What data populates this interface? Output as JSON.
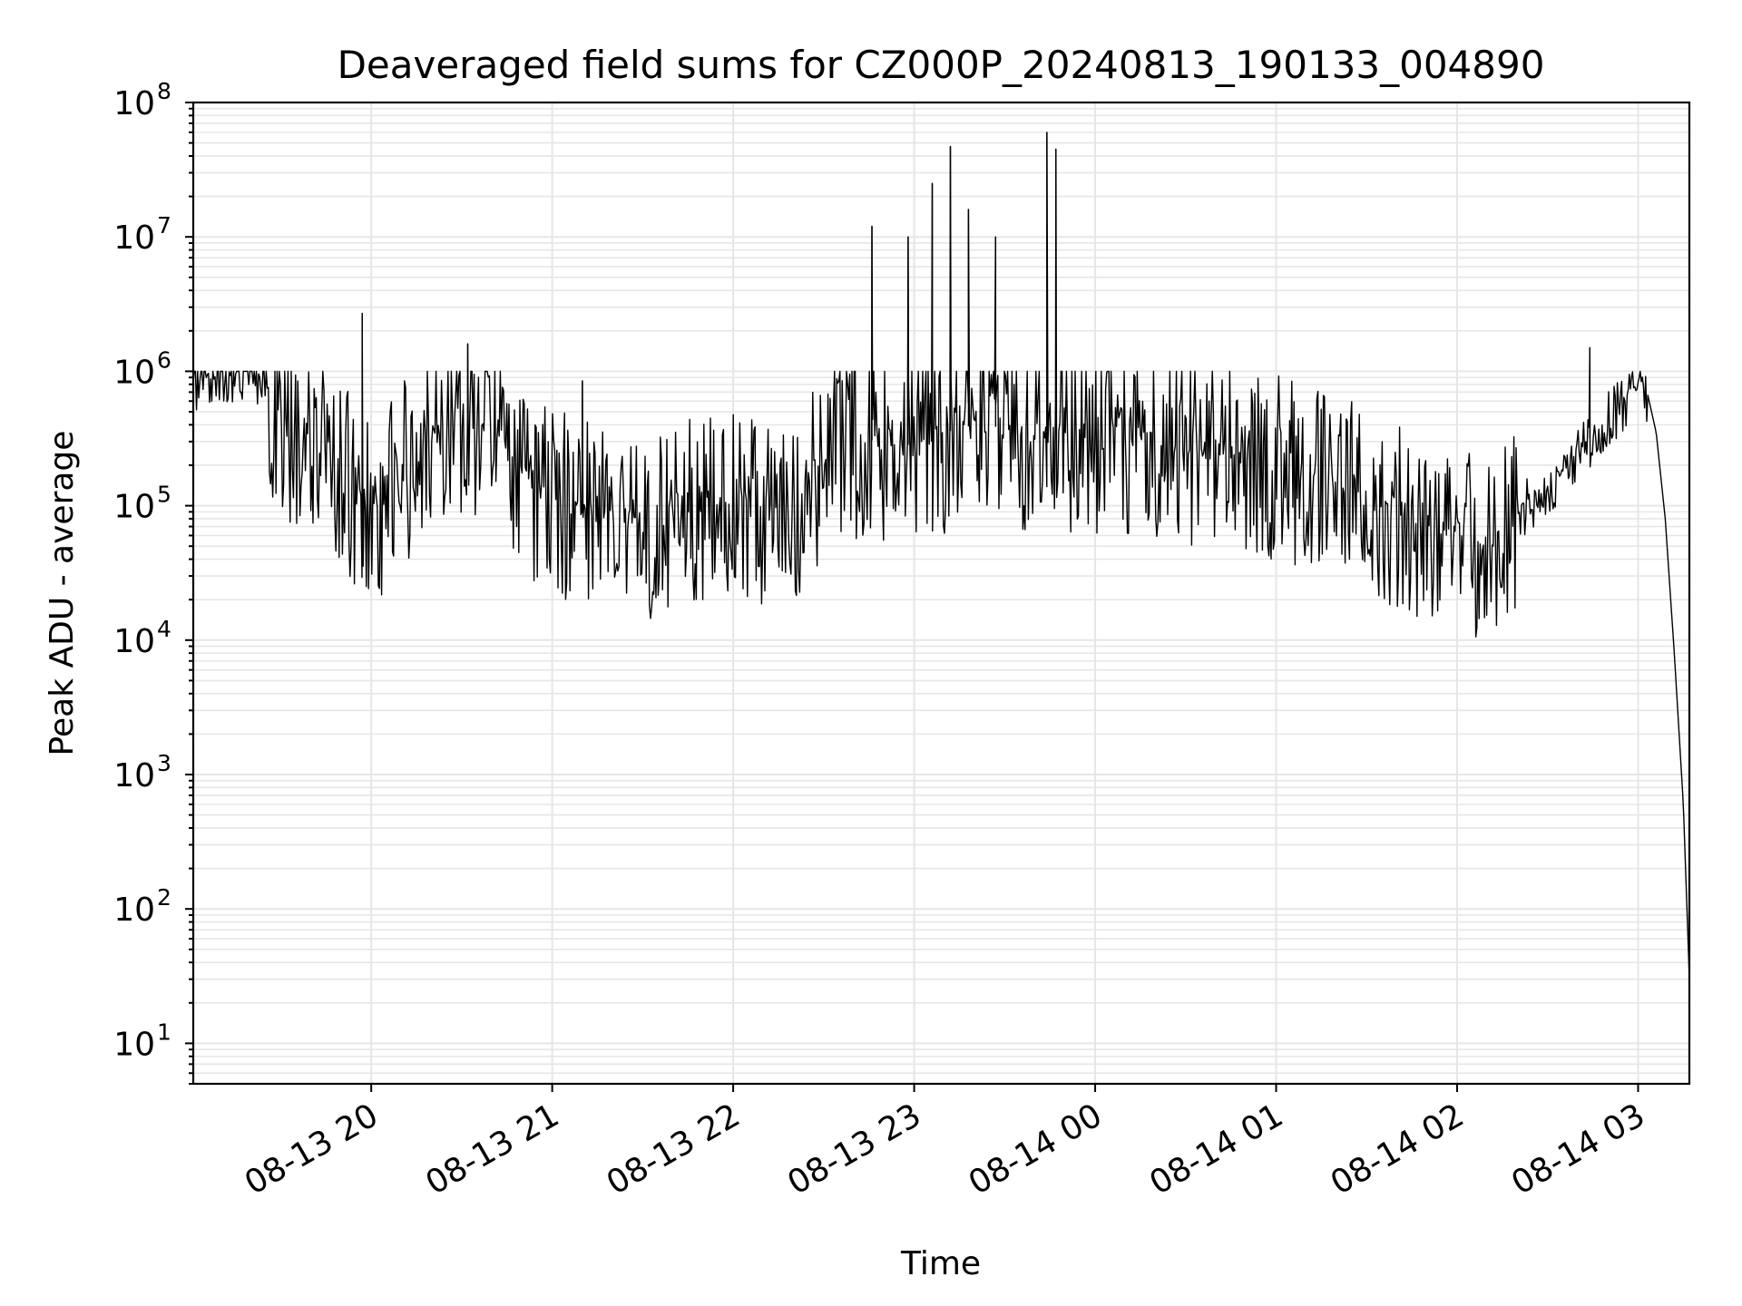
{
  "chart_data": {
    "type": "line",
    "title": "Deaveraged field sums for CZ000P_20240813_190133_004890",
    "xlabel": "Time",
    "ylabel": "Peak ADU - average",
    "yscale": "log",
    "ylim": [
      5,
      100000000
    ],
    "xlim": [
      "2024-08-13 19:01",
      "2024-08-14 03:17"
    ],
    "grid": true,
    "x_ticks": [
      "08-13 20",
      "08-13 21",
      "08-13 22",
      "08-13 23",
      "08-14 00",
      "08-14 01",
      "08-14 02",
      "08-14 03"
    ],
    "y_ticks": [
      {
        "base": "10",
        "exp": "1",
        "value": 10
      },
      {
        "base": "10",
        "exp": "2",
        "value": 100
      },
      {
        "base": "10",
        "exp": "3",
        "value": 1000
      },
      {
        "base": "10",
        "exp": "4",
        "value": 10000
      },
      {
        "base": "10",
        "exp": "5",
        "value": 100000
      },
      {
        "base": "10",
        "exp": "6",
        "value": 1000000
      },
      {
        "base": "10",
        "exp": "7",
        "value": 10000000
      },
      {
        "base": "10",
        "exp": "8",
        "value": 100000000
      }
    ],
    "line_color": "#000000",
    "series": [
      {
        "x": [
          "2024-08-13 19:01",
          "2024-08-13 19:10",
          "2024-08-13 19:20",
          "2024-08-13 19:25",
          "2024-08-13 19:30",
          "2024-08-13 19:40",
          "2024-08-13 19:50",
          "2024-08-13 19:55",
          "2024-08-13 20:00",
          "2024-08-13 20:10",
          "2024-08-13 20:20",
          "2024-08-13 20:30",
          "2024-08-13 20:40",
          "2024-08-13 20:50",
          "2024-08-13 21:00",
          "2024-08-13 21:10",
          "2024-08-13 21:20",
          "2024-08-13 21:30",
          "2024-08-13 21:40",
          "2024-08-13 21:50",
          "2024-08-13 22:00",
          "2024-08-13 22:10",
          "2024-08-13 22:20",
          "2024-08-13 22:30",
          "2024-08-13 22:40",
          "2024-08-13 22:50",
          "2024-08-13 23:00",
          "2024-08-13 23:10",
          "2024-08-13 23:20",
          "2024-08-13 23:30",
          "2024-08-13 23:40",
          "2024-08-13 23:50",
          "2024-08-14 00:00",
          "2024-08-14 00:10",
          "2024-08-14 00:20",
          "2024-08-14 00:30",
          "2024-08-14 00:40",
          "2024-08-14 00:50",
          "2024-08-14 01:00",
          "2024-08-14 01:10",
          "2024-08-14 01:20",
          "2024-08-14 01:30",
          "2024-08-14 01:40",
          "2024-08-14 01:50",
          "2024-08-14 02:00",
          "2024-08-14 02:10",
          "2024-08-14 02:20",
          "2024-08-14 02:30",
          "2024-08-14 02:40",
          "2024-08-14 02:50",
          "2024-08-14 03:00",
          "2024-08-14 03:03",
          "2024-08-14 03:06",
          "2024-08-14 03:09",
          "2024-08-14 03:12",
          "2024-08-14 03:15",
          "2024-08-14 03:17"
        ],
        "y": [
          850000,
          950000,
          1050000,
          800000,
          400000,
          320000,
          220000,
          110000,
          95000,
          180000,
          350000,
          480000,
          420000,
          180000,
          120000,
          100000,
          85000,
          75000,
          95000,
          110000,
          115000,
          95000,
          85000,
          250000,
          320000,
          300000,
          280000,
          350000,
          400000,
          380000,
          360000,
          350000,
          330000,
          320000,
          300000,
          290000,
          270000,
          250000,
          220000,
          180000,
          150000,
          120000,
          95000,
          75000,
          65000,
          55000,
          90000,
          140000,
          250000,
          450000,
          800000,
          700000,
          350000,
          80000,
          8000,
          600,
          30
        ]
      },
      {
        "x": [
          "2024-08-13 19:57",
          "2024-08-13 20:32",
          "2024-08-13 21:10",
          "2024-08-13 22:46",
          "2024-08-13 22:58",
          "2024-08-13 23:06",
          "2024-08-13 23:12",
          "2024-08-13 23:18",
          "2024-08-13 23:27",
          "2024-08-13 23:44",
          "2024-08-13 23:47",
          "2024-08-14 02:44"
        ],
        "y": [
          2700000,
          1600000,
          850000,
          12000000,
          10000000,
          25000000,
          47000000,
          16000000,
          10000000,
          60000000,
          45000000,
          1500000
        ]
      }
    ]
  }
}
